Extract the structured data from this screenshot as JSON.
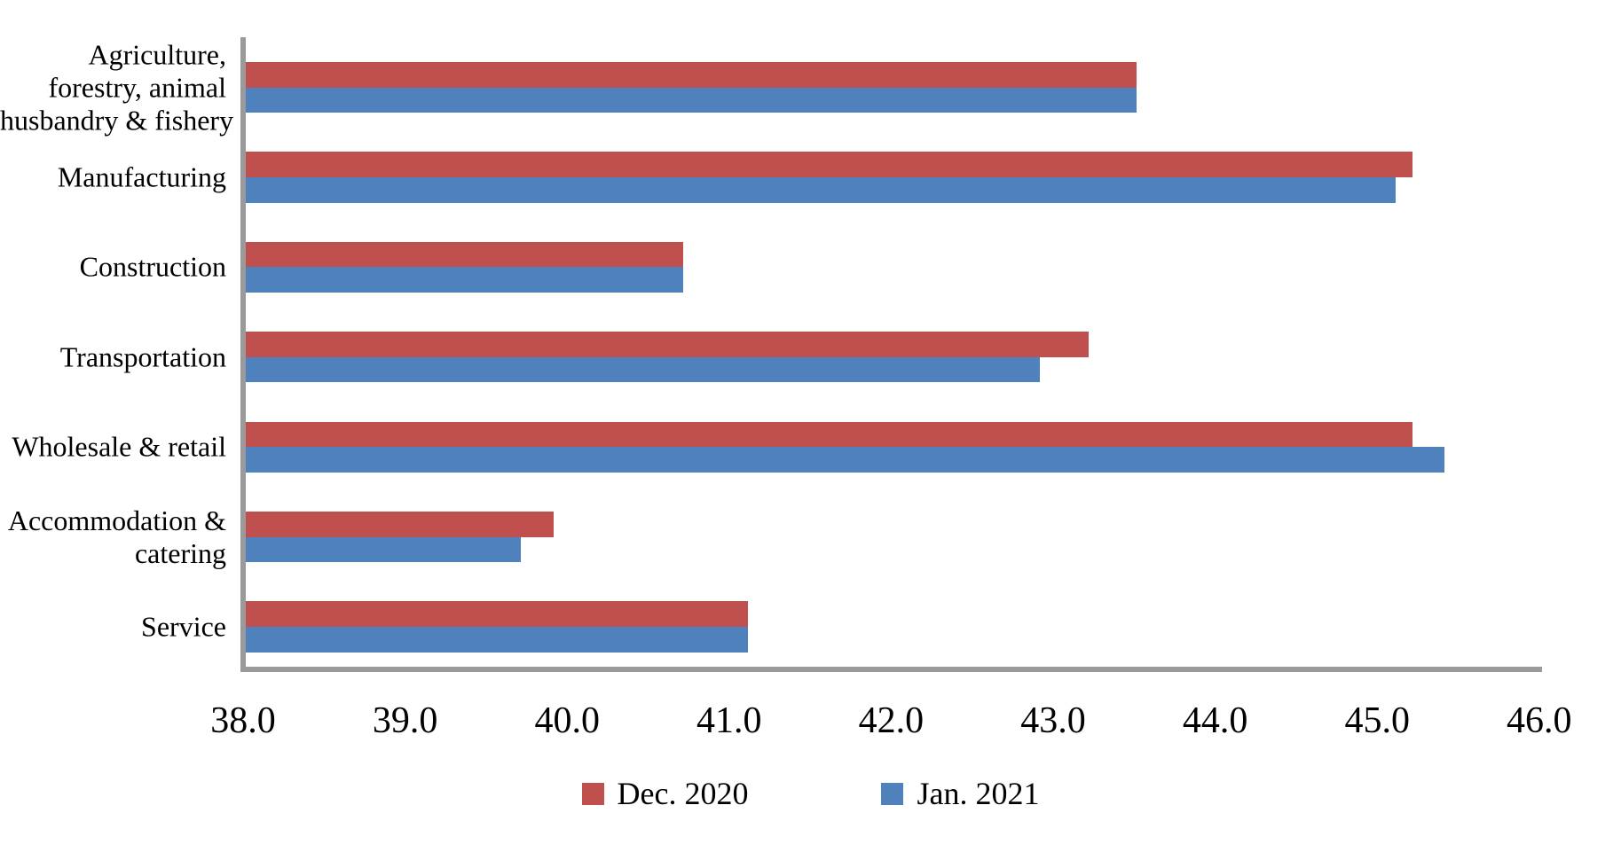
{
  "chart_data": {
    "type": "bar",
    "orientation": "horizontal",
    "title": "",
    "categories": [
      "Agriculture, forestry, animal husbandry & fishery",
      "Manufacturing",
      "Construction",
      "Transportation",
      "Wholesale & retail",
      "Accommodation & catering",
      "Service"
    ],
    "category_label_lines": [
      [
        "Agriculture,",
        "forestry, animal",
        "husbandry & fishery"
      ],
      [
        "Manufacturing"
      ],
      [
        "Construction"
      ],
      [
        "Transportation"
      ],
      [
        "Wholesale & retail"
      ],
      [
        "Accommodation &",
        "catering"
      ],
      [
        "Service"
      ]
    ],
    "series": [
      {
        "name": "Dec. 2020",
        "color": "#C0504D",
        "values": [
          43.5,
          45.2,
          40.7,
          43.2,
          45.2,
          39.9,
          41.1
        ]
      },
      {
        "name": "Jan. 2021",
        "color": "#4F81BD",
        "values": [
          43.5,
          45.1,
          40.7,
          42.9,
          45.4,
          39.7,
          41.1
        ]
      }
    ],
    "x_axis": {
      "min": 38.0,
      "max": 46.0,
      "step": 1.0,
      "tick_labels": [
        "38.0",
        "39.0",
        "40.0",
        "41.0",
        "42.0",
        "43.0",
        "44.0",
        "45.0",
        "46.0"
      ]
    },
    "grid": false,
    "legend_position": "bottom",
    "axis_color": "#9A9A9A",
    "background": "#FFFFFF"
  }
}
